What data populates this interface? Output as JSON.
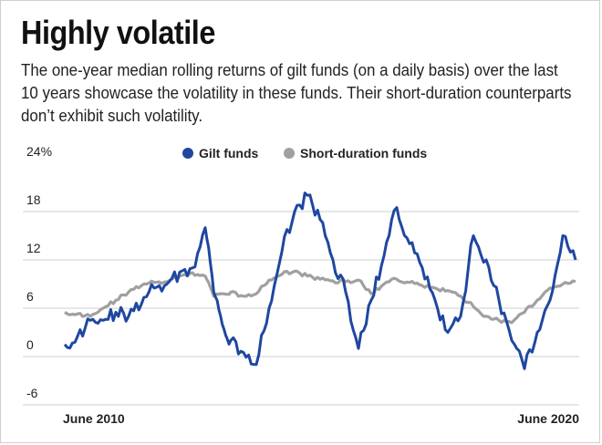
{
  "title": "Highly volatile",
  "subtitle": "The one-year median rolling returns of gilt funds (on a daily basis) over the last 10 years showcase the volatility in these funds. Their short-duration counterparts don’t exhibit such volatility.",
  "chart_data": {
    "type": "line",
    "y_ticks": [
      "24%",
      "18",
      "12",
      "6",
      "0",
      "-6"
    ],
    "y_tick_values": [
      24,
      18,
      12,
      6,
      0,
      -6
    ],
    "ylim": [
      -6,
      24
    ],
    "x_tick_labels": [
      "June 2010",
      "June 2020"
    ],
    "x_range": [
      "2010-06",
      "2020-06"
    ],
    "grid": true,
    "legend_position": "top",
    "series": [
      {
        "name": "Gilt funds",
        "color": "#1f47a0",
        "x": [
          "2010-06",
          "2010-09",
          "2010-12",
          "2011-03",
          "2011-06",
          "2011-09",
          "2011-12",
          "2012-03",
          "2012-06",
          "2012-09",
          "2012-12",
          "2013-03",
          "2013-05",
          "2013-07",
          "2013-09",
          "2013-12",
          "2014-03",
          "2014-06",
          "2014-09",
          "2014-12",
          "2015-03",
          "2015-06",
          "2015-09",
          "2015-12",
          "2016-03",
          "2016-06",
          "2016-09",
          "2016-12",
          "2017-03",
          "2017-06",
          "2017-09",
          "2017-12",
          "2018-03",
          "2018-06",
          "2018-09",
          "2018-12",
          "2019-03",
          "2019-06",
          "2019-09",
          "2019-12",
          "2020-03",
          "2020-06"
        ],
        "values": [
          1.5,
          2.5,
          4.5,
          4.5,
          5.5,
          5.0,
          6.5,
          8.5,
          9.0,
          10.5,
          11.0,
          16.0,
          8.0,
          4.0,
          2.0,
          0.5,
          -1.0,
          6.0,
          13.0,
          18.0,
          20.0,
          17.0,
          12.0,
          8.0,
          1.0,
          7.0,
          12.5,
          18.5,
          14.0,
          11.0,
          7.0,
          3.0,
          5.0,
          15.0,
          12.0,
          7.0,
          2.0,
          -1.5,
          3.0,
          7.0,
          15.0,
          12.0
        ]
      },
      {
        "name": "Short-duration funds",
        "color": "#a0a0a0",
        "x": [
          "2010-06",
          "2010-09",
          "2010-12",
          "2011-03",
          "2011-06",
          "2011-09",
          "2011-12",
          "2012-03",
          "2012-06",
          "2012-09",
          "2012-12",
          "2013-03",
          "2013-05",
          "2013-07",
          "2013-09",
          "2013-12",
          "2014-03",
          "2014-06",
          "2014-09",
          "2014-12",
          "2015-03",
          "2015-06",
          "2015-09",
          "2015-12",
          "2016-03",
          "2016-06",
          "2016-09",
          "2016-12",
          "2017-03",
          "2017-06",
          "2017-09",
          "2017-12",
          "2018-03",
          "2018-06",
          "2018-09",
          "2018-12",
          "2019-03",
          "2019-06",
          "2019-09",
          "2019-12",
          "2020-03",
          "2020-06"
        ],
        "values": [
          5.5,
          5.3,
          5.0,
          6.0,
          7.0,
          8.0,
          8.8,
          9.2,
          9.3,
          10.0,
          10.4,
          10.0,
          7.5,
          7.8,
          8.0,
          7.5,
          7.8,
          9.5,
          10.2,
          10.6,
          10.0,
          9.6,
          9.4,
          9.3,
          9.5,
          7.8,
          9.0,
          9.6,
          9.2,
          8.8,
          8.5,
          8.2,
          7.5,
          6.2,
          5.0,
          4.5,
          4.2,
          5.5,
          7.0,
          8.5,
          9.0,
          9.3
        ]
      }
    ]
  }
}
